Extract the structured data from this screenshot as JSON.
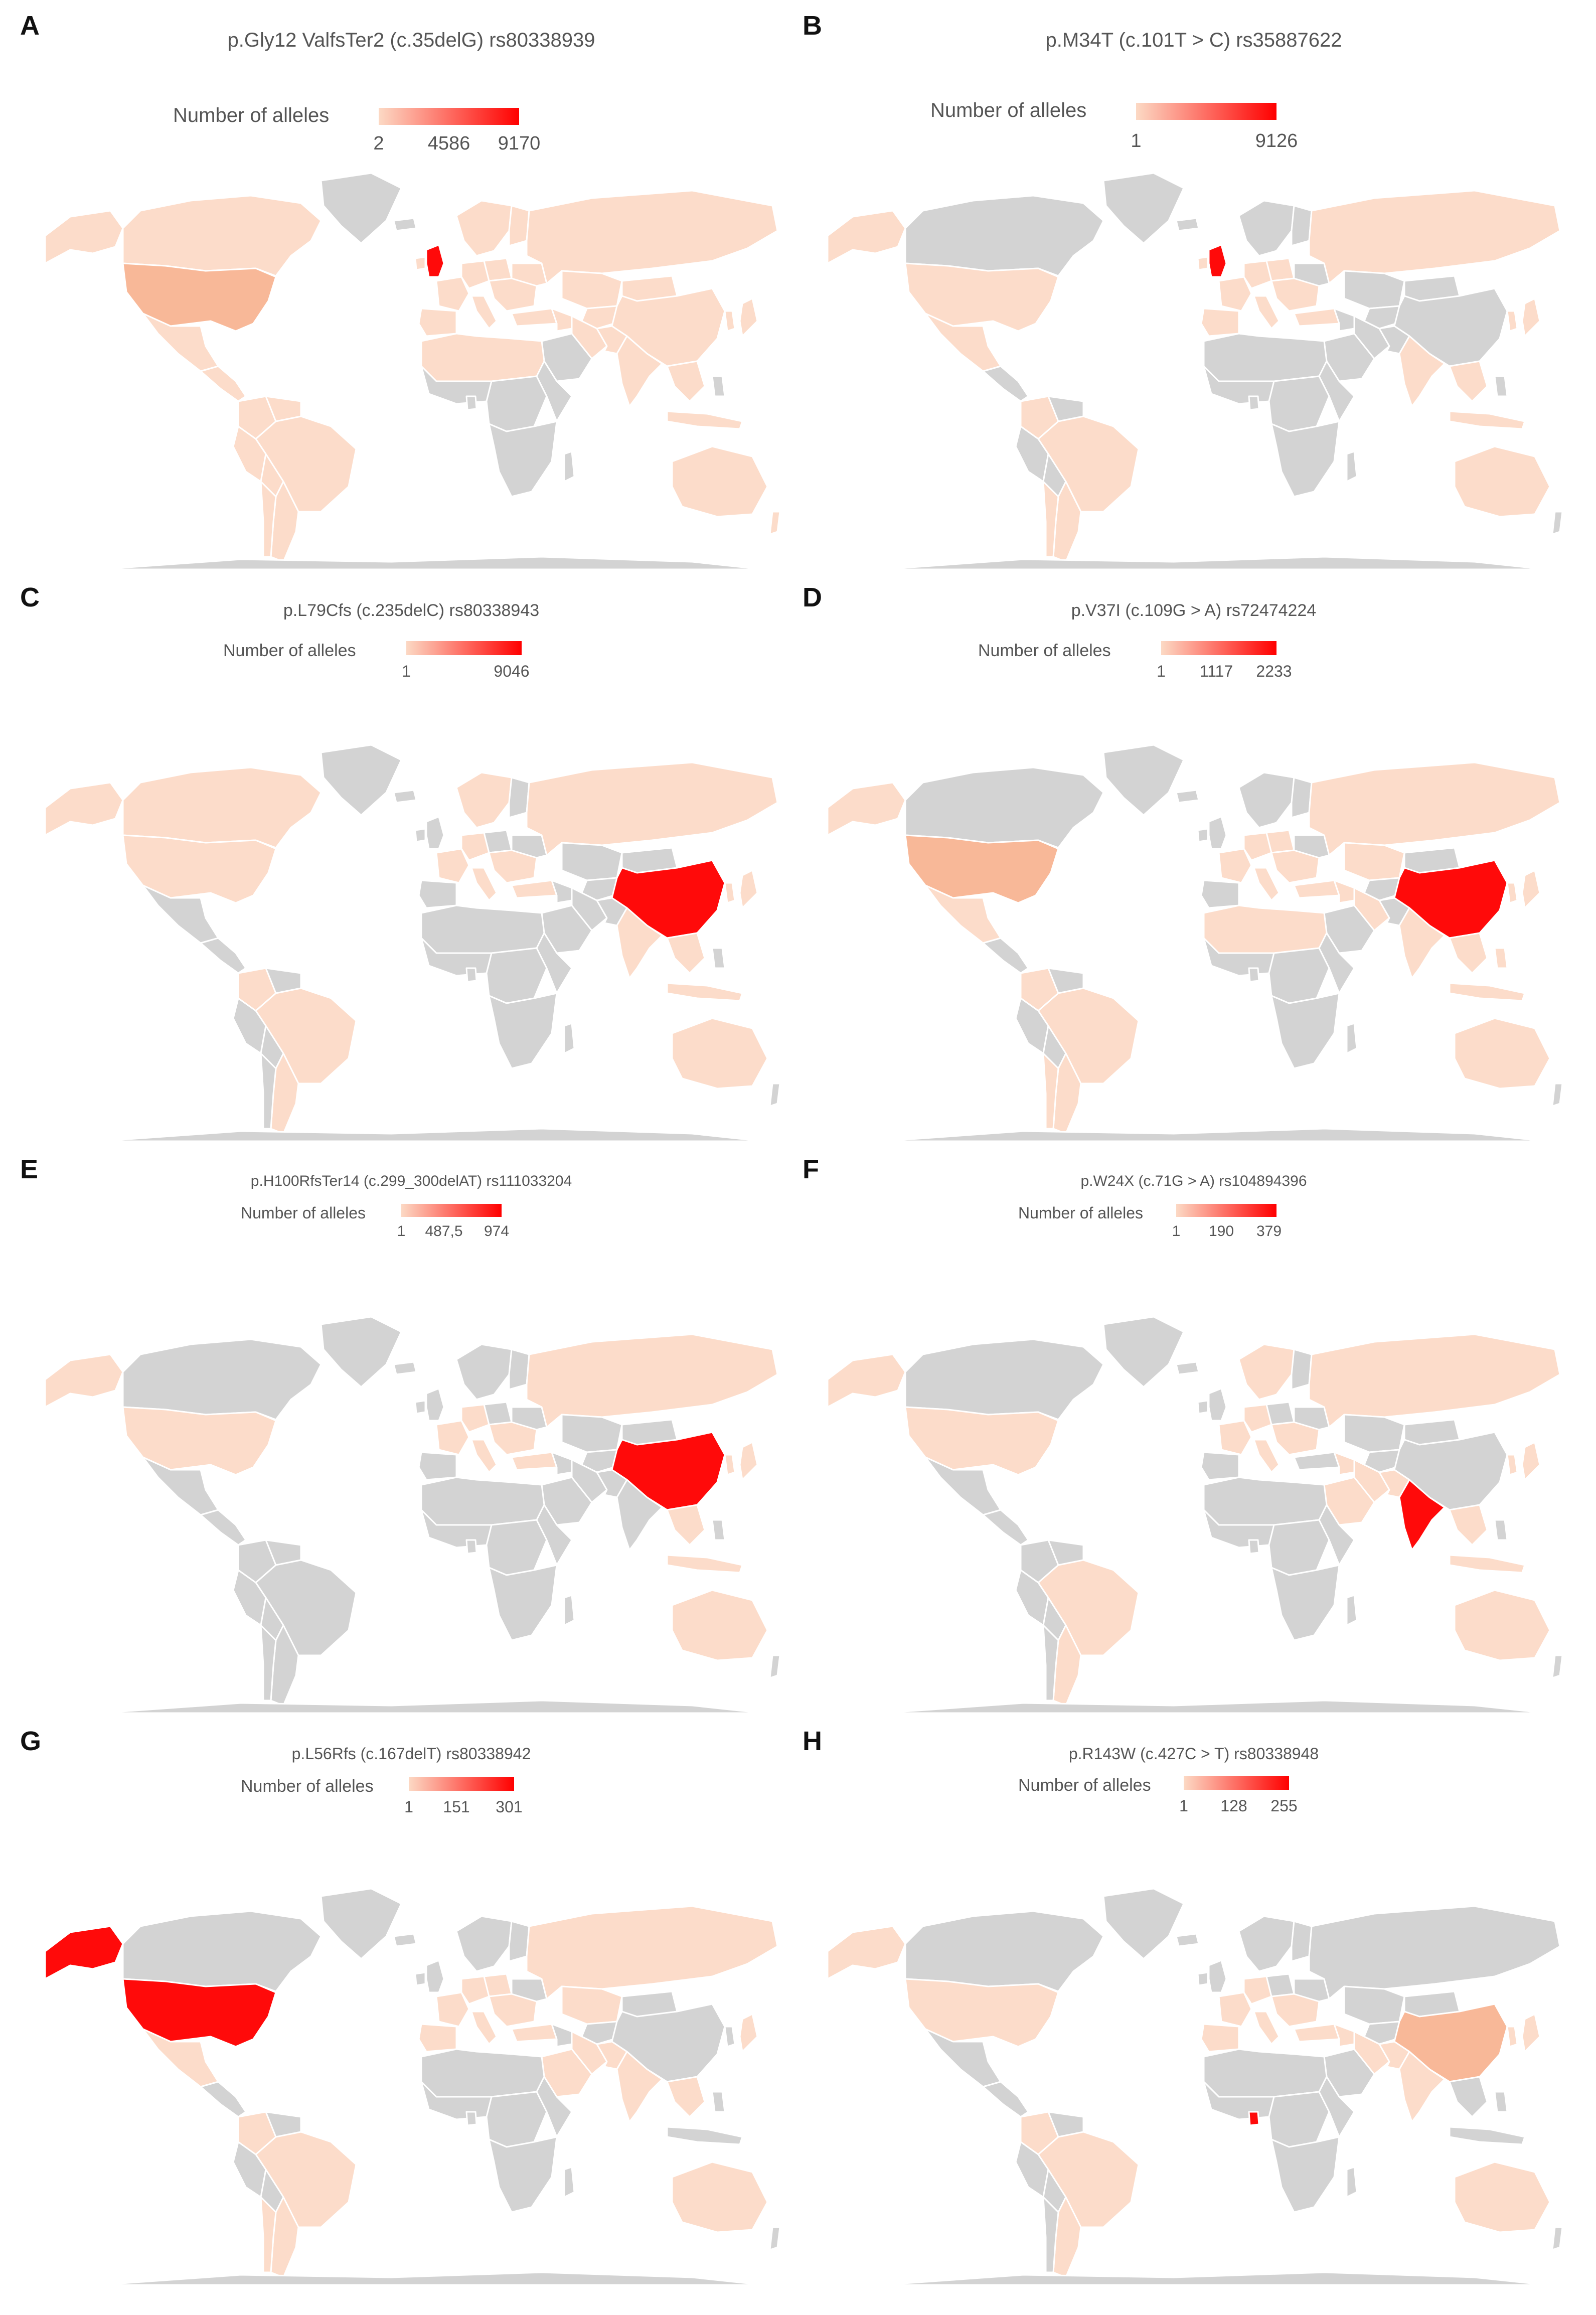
{
  "legend_label": "Number of alleles",
  "colors": {
    "no_data": "#d3d3d3",
    "low": "#fcdcca",
    "mid": "#f8b898",
    "high": "#ff0a0a"
  },
  "panels": [
    {
      "letter": "A",
      "title": "p.Gly12 ValfsTer2 (c.35delG) rs80338939",
      "ticks": [
        "2",
        "4586",
        "9170"
      ],
      "highlight": "United Kingdom"
    },
    {
      "letter": "B",
      "title": "p.M34T (c.101T > C) rs35887622",
      "ticks": [
        "1",
        "9126"
      ],
      "highlight": "United Kingdom"
    },
    {
      "letter": "C",
      "title": "p.L79Cfs (c.235delC)  rs80338943",
      "ticks": [
        "1",
        "9046"
      ],
      "highlight": "China"
    },
    {
      "letter": "D",
      "title": "p.V37I  (c.109G > A) rs72474224",
      "ticks": [
        "1",
        "1117",
        "2233"
      ],
      "highlight": "China"
    },
    {
      "letter": "E",
      "title": "p.H100RfsTer14 (c.299_300delAT) rs111033204",
      "ticks": [
        "1",
        "487,5",
        "974"
      ],
      "highlight": "China"
    },
    {
      "letter": "F",
      "title": "p.W24X (c.71G > A) rs104894396",
      "ticks": [
        "1",
        "190",
        "379"
      ],
      "highlight": "India"
    },
    {
      "letter": "G",
      "title": "p.L56Rfs (c.167delT) rs80338942",
      "ticks": [
        "1",
        "151",
        "301"
      ],
      "highlight": "United States"
    },
    {
      "letter": "H",
      "title": "p.R143W (c.427C > T) rs80338948",
      "ticks": [
        "1",
        "128",
        "255"
      ],
      "highlight": "Ghana"
    }
  ]
}
